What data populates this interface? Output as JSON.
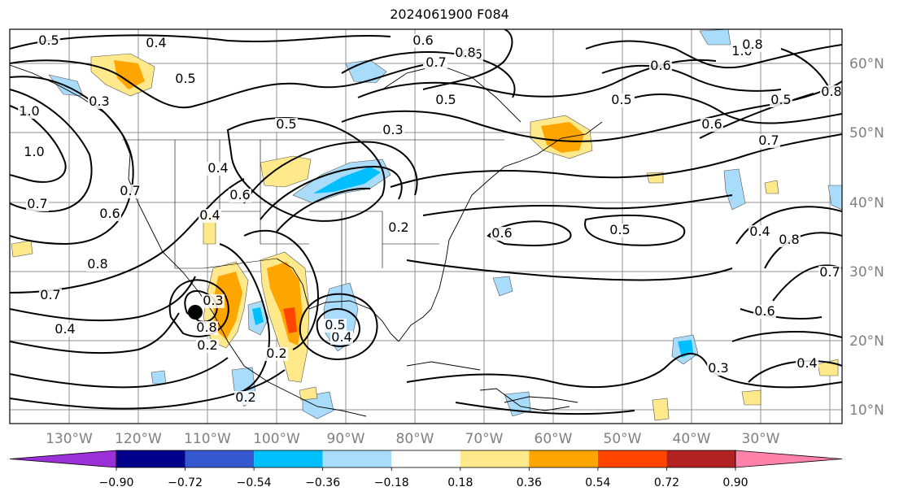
{
  "title": "2024061900 F084",
  "map": {
    "lat_labels": [
      "60°N",
      "50°N",
      "40°N",
      "30°N",
      "20°N",
      "10°N"
    ],
    "lon_labels": [
      "130°W",
      "120°W",
      "110°W",
      "100°W",
      "90°W",
      "80°W",
      "70°W",
      "60°W",
      "50°W",
      "40°W",
      "30°W"
    ],
    "contour_labels": [
      "0.5",
      "0.4",
      "0.5",
      "0.3",
      "1.0",
      "1.0",
      "0.7",
      "0.6",
      "0.7",
      "0.8",
      "0.7",
      "0.4",
      "0.8",
      "0.3",
      "0.2",
      "0.2",
      "0.4",
      "0.5",
      "0.3",
      "0.6",
      "0.4",
      "0.5",
      "0.2",
      "0.6",
      "0.5",
      "0.4",
      "0.8",
      "0.7",
      "0.3",
      "0.4",
      "0.6",
      "0.5",
      "0.6",
      "0.7",
      "0.6",
      "0.5",
      "0.8",
      "1.0",
      "0.8",
      "0.4",
      "0.5",
      "0.6",
      "0.7",
      "0.6",
      "0.2",
      "0.8"
    ]
  },
  "colorbar": {
    "colors": [
      "#9b30d9",
      "#00008b",
      "#3558d0",
      "#00bfff",
      "#a8dcfa",
      "#ffffff",
      "#ffe98a",
      "#ffa500",
      "#ff4500",
      "#b22222",
      "#ff82ab"
    ],
    "tick_labels": [
      "−0.90",
      "−0.72",
      "−0.54",
      "−0.36",
      "−0.18",
      "0.18",
      "0.36",
      "0.54",
      "0.72",
      "0.90"
    ]
  }
}
